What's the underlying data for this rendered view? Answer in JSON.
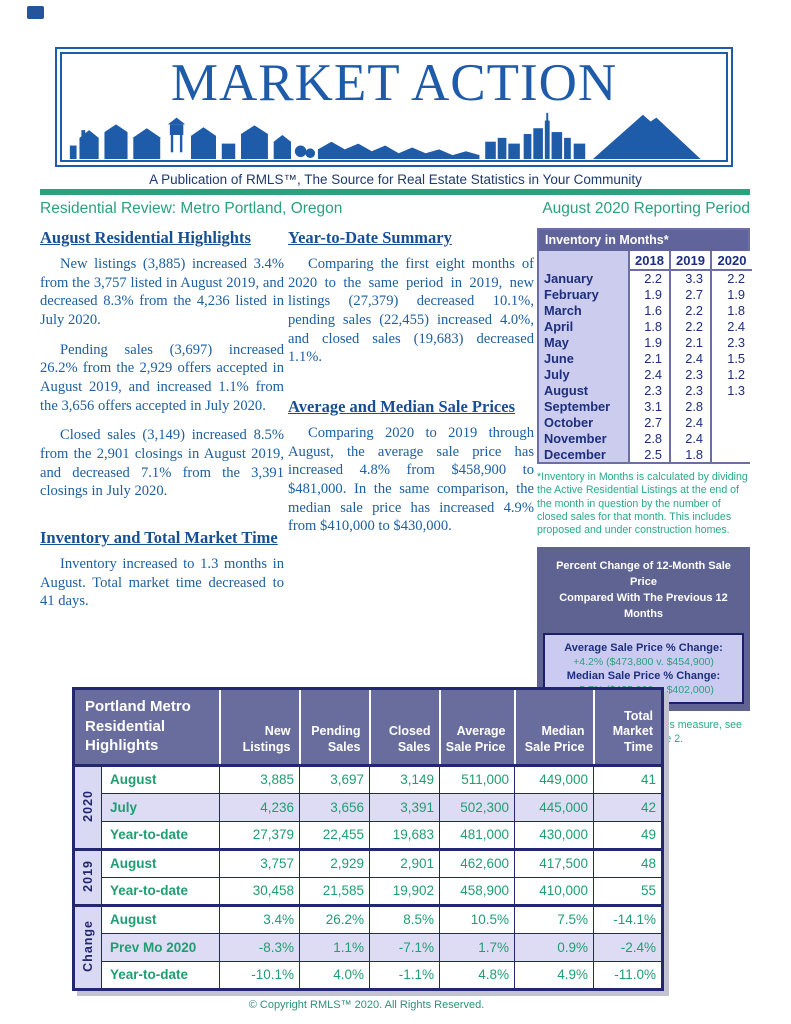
{
  "header": {
    "logo_title": "MARKET ACTION",
    "tagline": "A Publication of RMLS™, The Source for Real Estate Statistics in Your Community",
    "review_title": "Residential Review: Metro Portland, Oregon",
    "reporting_period": "August 2020 Reporting Period"
  },
  "articles": {
    "august_highlights": {
      "heading": "August Residential Highlights",
      "p1": "New listings (3,885) increased 3.4% from the 3,757 listed in August 2019, and decreased 8.3% from the 4,236 listed in July 2020.",
      "p2": "Pending sales (3,697) increased 26.2% from the 2,929 offers accepted in August 2019, and increased 1.1% from the 3,656 offers accepted in July 2020.",
      "p3": "Closed sales (3,149) increased 8.5% from the 2,901 closings in August 2019, and decreased 7.1% from the 3,391 closings in July 2020."
    },
    "inventory_time": {
      "heading": "Inventory and Total Market Time",
      "p1": "Inventory increased to 1.3 months in August. Total market time decreased to 41 days."
    },
    "ytd_summary": {
      "heading": "Year-to-Date Summary",
      "p1": "Comparing the first eight months of 2020 to the same period in 2019, new listings (27,379) decreased 10.1%, pending sales (22,455) increased 4.0%, and closed sales (19,683) decreased 1.1%."
    },
    "avg_median": {
      "heading": "Average and Median Sale Prices",
      "p1": "Comparing 2020 to 2019 through August, the average sale price has increased 4.8% from $458,900 to $481,000. In the same comparison, the median sale price has increased 4.9% from $410,000 to $430,000."
    }
  },
  "inventory_table": {
    "title": "Inventory in Months*",
    "years": [
      "2018",
      "2019",
      "2020"
    ],
    "rows": [
      {
        "month": "January",
        "values": [
          "2.2",
          "3.3",
          "2.2"
        ]
      },
      {
        "month": "February",
        "values": [
          "1.9",
          "2.7",
          "1.9"
        ]
      },
      {
        "month": "March",
        "values": [
          "1.6",
          "2.2",
          "1.8"
        ]
      },
      {
        "month": "April",
        "values": [
          "1.8",
          "2.2",
          "2.4"
        ]
      },
      {
        "month": "May",
        "values": [
          "1.9",
          "2.1",
          "2.3"
        ]
      },
      {
        "month": "June",
        "values": [
          "2.1",
          "2.4",
          "1.5"
        ]
      },
      {
        "month": "July",
        "values": [
          "2.4",
          "2.3",
          "1.2"
        ]
      },
      {
        "month": "August",
        "values": [
          "2.3",
          "2.3",
          "1.3"
        ]
      },
      {
        "month": "September",
        "values": [
          "3.1",
          "2.8",
          ""
        ]
      },
      {
        "month": "October",
        "values": [
          "2.7",
          "2.4",
          ""
        ]
      },
      {
        "month": "November",
        "values": [
          "2.8",
          "2.4",
          ""
        ]
      },
      {
        "month": "December",
        "values": [
          "2.5",
          "1.8",
          ""
        ]
      }
    ],
    "footnote": "*Inventory in Months is calculated by dividing the Active Residential Listings at the end of the month in question by the number of closed sales for that month. This includes proposed and under construction homes."
  },
  "pct_change_box": {
    "title_line1": "Percent Change of 12-Month Sale Price",
    "title_line2": "Compared With The Previous 12 Months",
    "avg_label": "Average Sale Price % Change:",
    "avg_value": "+4.2% ($473,800 v. $454,900)",
    "median_label": "Median Sale Price % Change:",
    "median_value": "+5.7% ($425,000 v. $402,000)",
    "note": "For further explanation of this measure, see the second footnote on page 2."
  },
  "highlights_table": {
    "title": "Portland Metro\nResidential\nHighlights",
    "columns": [
      "New\nListings",
      "Pending\nSales",
      "Closed\nSales",
      "Average\nSale Price",
      "Median\nSale Price",
      "Total\nMarket\nTime"
    ],
    "groups": [
      {
        "label": "2020",
        "rows": [
          {
            "label": "August",
            "values": [
              "3,885",
              "3,697",
              "3,149",
              "511,000",
              "449,000",
              "41"
            ],
            "shaded": false
          },
          {
            "label": "July",
            "values": [
              "4,236",
              "3,656",
              "3,391",
              "502,300",
              "445,000",
              "42"
            ],
            "shaded": true
          },
          {
            "label": "Year-to-date",
            "values": [
              "27,379",
              "22,455",
              "19,683",
              "481,000",
              "430,000",
              "49"
            ],
            "shaded": false
          }
        ]
      },
      {
        "label": "2019",
        "rows": [
          {
            "label": "August",
            "values": [
              "3,757",
              "2,929",
              "2,901",
              "462,600",
              "417,500",
              "48"
            ],
            "shaded": false
          },
          {
            "label": "Year-to-date",
            "values": [
              "30,458",
              "21,585",
              "19,902",
              "458,900",
              "410,000",
              "55"
            ],
            "shaded": false
          }
        ]
      },
      {
        "label": "Change",
        "rows": [
          {
            "label": "August",
            "values": [
              "3.4%",
              "26.2%",
              "8.5%",
              "10.5%",
              "7.5%",
              "-14.1%"
            ],
            "shaded": false
          },
          {
            "label": "Prev Mo 2020",
            "values": [
              "-8.3%",
              "1.1%",
              "-7.1%",
              "1.7%",
              "0.9%",
              "-2.4%"
            ],
            "shaded": true
          },
          {
            "label": "Year-to-date",
            "values": [
              "-10.1%",
              "4.0%",
              "-1.1%",
              "4.8%",
              "4.9%",
              "-11.0%"
            ],
            "shaded": false
          }
        ]
      }
    ]
  },
  "footer": {
    "copyright": "© Copyright RMLS™ 2020. All Rights Reserved."
  },
  "colors": {
    "brand_blue": "#1e5ba9",
    "body_blue": "#1d5fa0",
    "accent_green": "#2aa17c",
    "footnote_teal": "#2aa78b",
    "slate_purple": "#696d9e",
    "lavender": "#ccccee",
    "table_navy": "#23276f",
    "value_green": "#1f9e71"
  }
}
